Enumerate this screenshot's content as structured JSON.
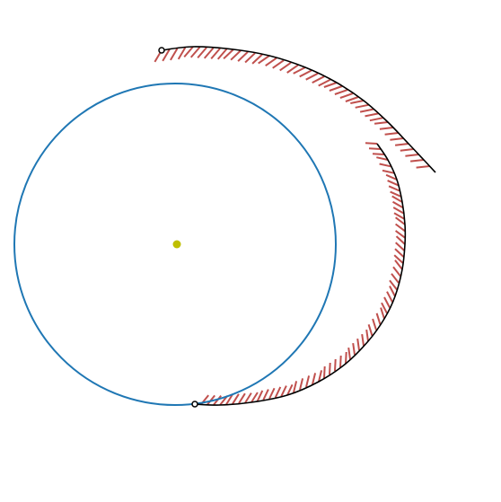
{
  "colors": {
    "background": "#ffffff",
    "circle": "#1f77b4",
    "center_point": "#bfbf00",
    "arc": "#000000",
    "hatch": "#c0504d",
    "endpoint_marker": "#000000"
  },
  "diagram": {
    "elements": [
      {
        "kind": "circle",
        "name": "blue-circle"
      },
      {
        "kind": "point",
        "name": "circle-center-point"
      },
      {
        "kind": "arc",
        "name": "outer-arc-segment"
      },
      {
        "kind": "marker",
        "name": "arc-start-marker"
      },
      {
        "kind": "marker",
        "name": "arc-end-marker"
      }
    ]
  }
}
